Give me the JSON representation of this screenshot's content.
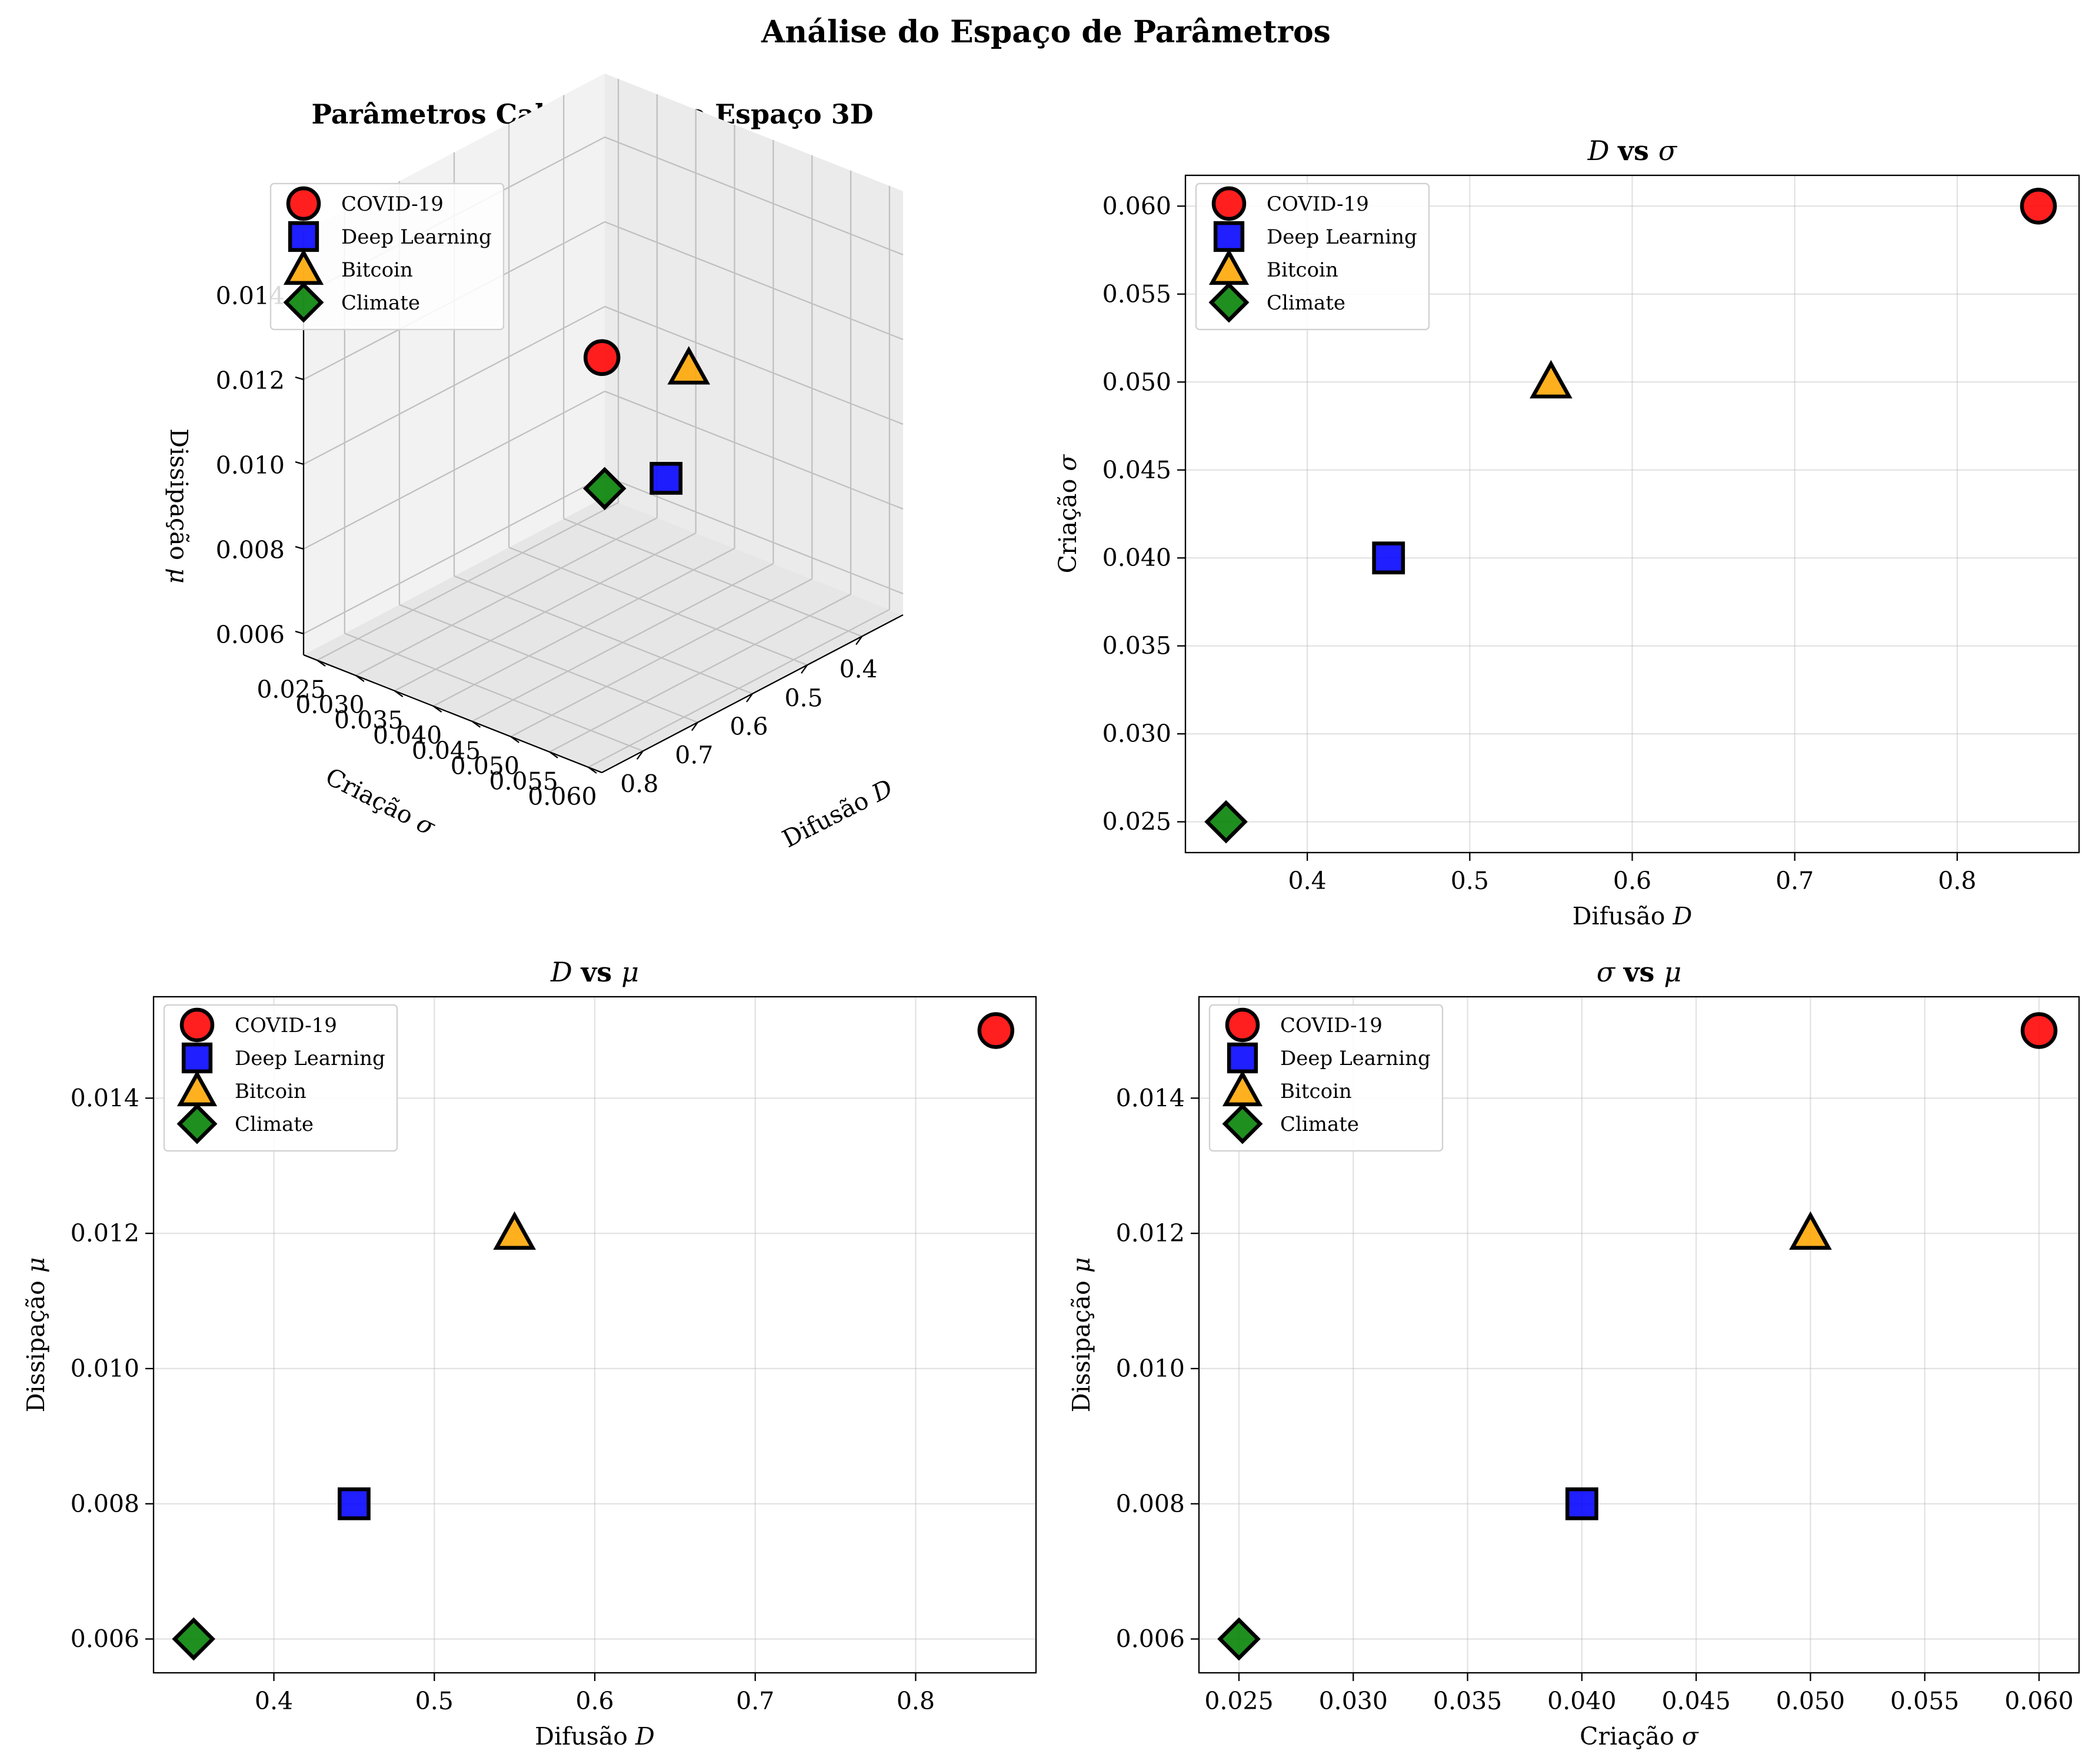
{
  "suptitle": "Análise do Espaço de Parâmetros",
  "labels": {
    "D": "Difusão",
    "sigma": "Criação",
    "mu": "Dissipação"
  },
  "symbols": {
    "D": "D",
    "sigma": "σ",
    "mu": "μ",
    "vs": "vs"
  },
  "colors": {
    "COVID-19": "#ff0000",
    "Deep Learning": "#0000ff",
    "Bitcoin": "#ffa500",
    "Climate": "#008000"
  },
  "chart_data": [
    {
      "type": "scatter3d",
      "title": "Parâmetros Calibrados no Espaço 3D",
      "xlabel": "Difusão D",
      "ylabel": "Criação σ",
      "zlabel": "Dissipação μ",
      "xticks": [
        "0.4",
        "0.5",
        "0.6",
        "0.7",
        "0.8"
      ],
      "yticks": [
        "0.025",
        "0.030",
        "0.035",
        "0.040",
        "0.045",
        "0.050",
        "0.055",
        "0.060"
      ],
      "zticks": [
        "0.006",
        "0.008",
        "0.010",
        "0.012",
        "0.014"
      ],
      "legend_position": "upper-left",
      "series": [
        {
          "name": "COVID-19",
          "marker": "circle",
          "x": 0.85,
          "y": 0.06,
          "z": 0.015
        },
        {
          "name": "Deep Learning",
          "marker": "square",
          "x": 0.45,
          "y": 0.04,
          "z": 0.008
        },
        {
          "name": "Bitcoin",
          "marker": "triangle",
          "x": 0.55,
          "y": 0.05,
          "z": 0.012
        },
        {
          "name": "Climate",
          "marker": "diamond",
          "x": 0.35,
          "y": 0.025,
          "z": 0.006
        }
      ]
    },
    {
      "type": "scatter",
      "title": "D vs σ",
      "xlabel": "Difusão D",
      "ylabel": "Criação σ",
      "xlim": [
        0.325,
        0.875
      ],
      "ylim": [
        0.02325,
        0.06175
      ],
      "xticks": [
        0.4,
        0.5,
        0.6,
        0.7,
        0.8
      ],
      "yticks": [
        0.025,
        0.03,
        0.035,
        0.04,
        0.045,
        0.05,
        0.055,
        0.06
      ],
      "xtick_labels": [
        "0.4",
        "0.5",
        "0.6",
        "0.7",
        "0.8"
      ],
      "ytick_labels": [
        "0.025",
        "0.030",
        "0.035",
        "0.040",
        "0.045",
        "0.050",
        "0.055",
        "0.060"
      ],
      "grid": true,
      "legend_position": "upper-left",
      "series": [
        {
          "name": "COVID-19",
          "marker": "circle",
          "x": 0.85,
          "y": 0.06
        },
        {
          "name": "Deep Learning",
          "marker": "square",
          "x": 0.45,
          "y": 0.04
        },
        {
          "name": "Bitcoin",
          "marker": "triangle",
          "x": 0.55,
          "y": 0.05
        },
        {
          "name": "Climate",
          "marker": "diamond",
          "x": 0.35,
          "y": 0.025
        }
      ]
    },
    {
      "type": "scatter",
      "title": "D vs μ",
      "xlabel": "Difusão D",
      "ylabel": "Dissipação μ",
      "xlim": [
        0.325,
        0.875
      ],
      "ylim": [
        0.0055,
        0.0155
      ],
      "xticks": [
        0.4,
        0.5,
        0.6,
        0.7,
        0.8
      ],
      "yticks": [
        0.006,
        0.008,
        0.01,
        0.012,
        0.014
      ],
      "xtick_labels": [
        "0.4",
        "0.5",
        "0.6",
        "0.7",
        "0.8"
      ],
      "ytick_labels": [
        "0.006",
        "0.008",
        "0.010",
        "0.012",
        "0.014"
      ],
      "grid": true,
      "legend_position": "upper-left",
      "series": [
        {
          "name": "COVID-19",
          "marker": "circle",
          "x": 0.85,
          "y": 0.015
        },
        {
          "name": "Deep Learning",
          "marker": "square",
          "x": 0.45,
          "y": 0.008
        },
        {
          "name": "Bitcoin",
          "marker": "triangle",
          "x": 0.55,
          "y": 0.012
        },
        {
          "name": "Climate",
          "marker": "diamond",
          "x": 0.35,
          "y": 0.006
        }
      ]
    },
    {
      "type": "scatter",
      "title": "σ vs μ",
      "xlabel": "Criação σ",
      "ylabel": "Dissipação μ",
      "xlim": [
        0.02325,
        0.06175
      ],
      "ylim": [
        0.0055,
        0.0155
      ],
      "xticks": [
        0.025,
        0.03,
        0.035,
        0.04,
        0.045,
        0.05,
        0.055,
        0.06
      ],
      "yticks": [
        0.006,
        0.008,
        0.01,
        0.012,
        0.014
      ],
      "xtick_labels": [
        "0.025",
        "0.030",
        "0.035",
        "0.040",
        "0.045",
        "0.050",
        "0.055",
        "0.060"
      ],
      "ytick_labels": [
        "0.006",
        "0.008",
        "0.010",
        "0.012",
        "0.014"
      ],
      "grid": true,
      "legend_position": "upper-left",
      "series": [
        {
          "name": "COVID-19",
          "marker": "circle",
          "x": 0.06,
          "y": 0.015
        },
        {
          "name": "Deep Learning",
          "marker": "square",
          "x": 0.04,
          "y": 0.008
        },
        {
          "name": "Bitcoin",
          "marker": "triangle",
          "x": 0.05,
          "y": 0.012
        },
        {
          "name": "Climate",
          "marker": "diamond",
          "x": 0.025,
          "y": 0.006
        }
      ]
    }
  ]
}
